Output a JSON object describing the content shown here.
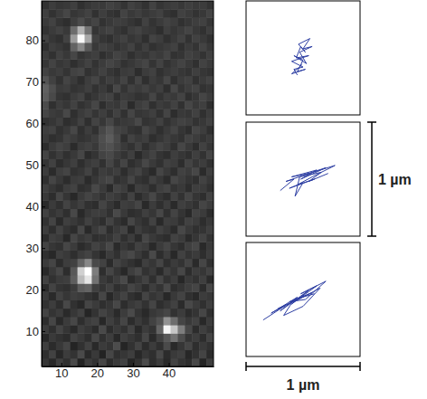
{
  "chart_data": [
    {
      "type": "heatmap",
      "xlim": [
        4.5,
        52.5
      ],
      "ylim": [
        1.5,
        89.5
      ],
      "xticks": [
        10,
        20,
        30,
        40
      ],
      "yticks": [
        10,
        20,
        30,
        40,
        50,
        60,
        70,
        80
      ],
      "cells": [
        [
          52,
          38,
          61,
          45,
          70,
          33,
          58,
          47,
          66,
          41,
          55,
          62,
          36,
          49,
          72,
          44,
          57,
          39,
          64,
          50,
          43,
          68,
          35,
          59
        ],
        [
          44,
          63,
          37,
          58,
          49,
          71,
          40,
          55,
          34,
          67,
          46,
          52,
          60,
          38,
          53,
          45,
          69,
          42,
          56,
          61,
          37,
          48,
          65,
          41
        ],
        [
          60,
          41,
          54,
          66,
          35,
          47,
          62,
          39,
          57,
          50,
          73,
          36,
          48,
          64,
          42,
          58,
          45,
          71,
          39,
          52,
          66,
          44,
          56,
          47
        ],
        [
          37,
          56,
          48,
          42,
          63,
          55,
          44,
          68,
          46,
          59,
          38,
          61,
          53,
          45,
          67,
          40,
          62,
          85,
          110,
          74,
          50,
          59,
          43,
          64
        ],
        [
          58,
          45,
          65,
          51,
          39,
          60,
          52,
          41,
          70,
          43,
          56,
          47,
          64,
          39,
          58,
          49,
          96,
          235,
          190,
          120,
          68,
          42,
          61,
          50
        ],
        [
          43,
          67,
          39,
          57,
          68,
          44,
          59,
          63,
          37,
          61,
          49,
          66,
          42,
          57,
          46,
          63,
          78,
          140,
          105,
          66,
          55,
          63,
          38,
          57
        ],
        [
          65,
          50,
          58,
          40,
          53,
          62,
          36,
          49,
          64,
          55,
          40,
          58,
          71,
          50,
          39,
          54,
          60,
          67,
          48,
          58,
          42,
          50,
          67,
          45
        ],
        [
          48,
          59,
          44,
          69,
          47,
          38,
          66,
          57,
          45,
          52,
          68,
          43,
          55,
          61,
          48,
          66,
          44,
          53,
          62,
          41,
          69,
          57,
          46,
          60
        ],
        [
          56,
          40,
          63,
          52,
          61,
          57,
          49,
          42,
          67,
          38,
          54,
          63,
          47,
          40,
          65,
          51,
          58,
          38,
          55,
          64,
          46,
          39,
          58,
          53
        ],
        [
          41,
          64,
          50,
          46,
          58,
          88,
          95,
          61,
          50,
          62,
          45,
          51,
          66,
          58,
          43,
          60,
          49,
          70,
          44,
          51,
          60,
          66,
          42,
          67
        ],
        [
          62,
          47,
          57,
          60,
          90,
          180,
          220,
          110,
          56,
          47,
          59,
          70,
          41,
          52,
          63,
          45,
          67,
          48,
          59,
          37,
          55,
          48,
          61,
          40
        ],
        [
          39,
          55,
          68,
          43,
          85,
          200,
          245,
          120,
          44,
          66,
          51,
          38,
          60,
          69,
          48,
          57,
          40,
          62,
          51,
          68,
          43,
          59,
          52,
          63
        ],
        [
          57,
          66,
          42,
          59,
          62,
          95,
          130,
          70,
          63,
          41,
          64,
          55,
          47,
          39,
          61,
          52,
          66,
          45,
          57,
          49,
          65,
          40,
          67,
          46
        ],
        [
          46,
          38,
          61,
          55,
          44,
          58,
          64,
          50,
          39,
          58,
          47,
          62,
          69,
          56,
          44,
          70,
          43,
          59,
          38,
          62,
          50,
          57,
          44,
          58
        ],
        [
          64,
          52,
          47,
          67,
          57,
          41,
          49,
          63,
          55,
          69,
          40,
          53,
          45,
          62,
          58,
          39,
          57,
          66,
          52,
          44,
          61,
          68,
          39,
          55
        ],
        [
          42,
          61,
          56,
          38,
          66,
          53,
          60,
          45,
          48,
          51,
          62,
          46,
          58,
          41,
          67,
          55,
          48,
          43,
          63,
          57,
          40,
          52,
          64,
          49
        ],
        [
          59,
          44,
          63,
          50,
          42,
          68,
          39,
          57,
          66,
          43,
          56,
          64,
          38,
          60,
          50,
          46,
          62,
          54,
          41,
          68,
          55,
          46,
          50,
          61
        ],
        [
          48,
          65,
          40,
          61,
          55,
          47,
          62,
          51,
          44,
          64,
          49,
          41,
          67,
          53,
          45,
          63,
          39,
          60,
          57,
          45,
          62,
          58,
          43,
          54
        ],
        [
          63,
          50,
          58,
          45,
          69,
          39,
          54,
          60,
          58,
          47,
          70,
          55,
          44,
          48,
          61,
          52,
          68,
          46,
          64,
          50,
          39,
          63,
          57,
          42
        ],
        [
          40,
          57,
          46,
          64,
          52,
          61,
          47,
          43,
          65,
          52,
          41,
          60,
          57,
          66,
          39,
          58,
          45,
          59,
          40,
          61,
          54,
          47,
          66,
          58
        ],
        [
          55,
          43,
          67,
          51,
          38,
          56,
          65,
          58,
          49,
          61,
          55,
          46,
          63,
          42,
          54,
          68,
          51,
          43,
          62,
          48,
          66,
          51,
          44,
          62
        ],
        [
          61,
          52,
          44,
          59,
          63,
          45,
          50,
          69,
          56,
          40,
          64,
          58,
          39,
          61,
          57,
          44,
          60,
          65,
          49,
          55,
          43,
          60,
          57,
          46
        ],
        [
          45,
          66,
          54,
          42,
          57,
          60,
          41,
          53,
          62,
          68,
          47,
          52,
          66,
          50,
          45,
          62,
          53,
          41,
          67,
          59,
          50,
          45,
          63,
          53
        ],
        [
          58,
          41,
          60,
          65,
          47,
          52,
          63,
          46,
          59,
          54,
          60,
          43,
          57,
          64,
          51,
          40,
          66,
          55,
          44,
          62,
          57,
          68,
          41,
          60
        ],
        [
          50,
          62,
          43,
          53,
          61,
          44,
          56,
          61,
          47,
          66,
          50,
          65,
          45,
          53,
          68,
          56,
          47,
          62,
          58,
          43,
          64,
          52,
          59,
          47
        ],
        [
          64,
          48,
          59,
          46,
          55,
          67,
          42,
          50,
          64,
          70,
          58,
          49,
          61,
          40,
          55,
          63,
          50,
          44,
          60,
          52,
          46,
          61,
          48,
          65
        ],
        [
          42,
          57,
          65,
          60,
          41,
          58,
          62,
          55,
          72,
          78,
          66,
          56,
          48,
          62,
          46,
          57,
          65,
          59,
          46,
          67,
          55,
          43,
          62,
          51
        ],
        [
          56,
          45,
          50,
          63,
          57,
          49,
          53,
          60,
          75,
          88,
          70,
          45,
          63,
          55,
          60,
          44,
          52,
          61,
          53,
          48,
          63,
          58,
          50,
          57
        ],
        [
          60,
          63,
          47,
          55,
          68,
          46,
          59,
          47,
          68,
          82,
          64,
          61,
          50,
          46,
          67,
          58,
          45,
          56,
          65,
          51,
          44,
          66,
          59,
          45
        ],
        [
          47,
          52,
          61,
          44,
          50,
          62,
          45,
          64,
          53,
          67,
          51,
          55,
          58,
          69,
          49,
          53,
          62,
          48,
          57,
          63,
          60,
          49,
          54,
          62
        ],
        [
          66,
          58,
          54,
          69,
          45,
          57,
          63,
          51,
          60,
          48,
          62,
          47,
          66,
          52,
          55,
          61,
          47,
          65,
          43,
          55,
          52,
          62,
          46,
          58
        ],
        [
          72,
          46,
          59,
          52,
          62,
          48,
          55,
          67,
          44,
          57,
          54,
          63,
          41,
          59,
          64,
          46,
          58,
          53,
          62,
          47,
          67,
          55,
          61,
          44
        ],
        [
          88,
          70,
          51,
          47,
          58,
          64,
          46,
          53,
          61,
          63,
          46,
          58,
          55,
          48,
          51,
          66,
          49,
          60,
          55,
          64,
          45,
          53,
          66,
          57
        ],
        [
          92,
          75,
          57,
          60,
          49,
          53,
          61,
          48,
          56,
          45,
          68,
          50,
          62,
          57,
          63,
          54,
          61,
          44,
          68,
          50,
          59,
          64,
          48,
          52
        ],
        [
          80,
          62,
          48,
          65,
          56,
          44,
          59,
          66,
          50,
          61,
          53,
          64,
          47,
          65,
          45,
          59,
          52,
          67,
          46,
          58,
          62,
          47,
          57,
          63
        ],
        [
          63,
          55,
          60,
          50,
          63,
          67,
          48,
          54,
          62,
          52,
          46,
          57,
          60,
          43,
          58,
          62,
          47,
          55,
          60,
          53,
          49,
          61,
          52,
          48
        ],
        [
          51,
          64,
          53,
          58,
          45,
          55,
          63,
          49,
          58,
          66,
          60,
          48,
          54,
          61,
          66,
          50,
          63,
          49,
          57,
          64,
          55,
          46,
          63,
          56
        ],
        [
          58,
          47,
          62,
          54,
          67,
          50,
          57,
          61,
          45,
          53,
          64,
          59,
          46,
          56,
          52,
          61,
          56,
          65,
          48,
          51,
          62,
          58,
          49,
          61
        ],
        [
          45,
          60,
          55,
          48,
          95,
          130,
          85,
          55,
          62,
          58,
          49,
          55,
          63,
          49,
          60,
          47,
          53,
          58,
          62,
          46,
          57,
          50,
          64,
          53
        ],
        [
          62,
          52,
          46,
          63,
          150,
          240,
          160,
          62,
          51,
          46,
          57,
          62,
          52,
          58,
          45,
          64,
          59,
          46,
          55,
          63,
          48,
          62,
          55,
          46
        ],
        [
          49,
          57,
          63,
          55,
          105,
          170,
          110,
          51,
          59,
          64,
          53,
          47,
          60,
          64,
          56,
          53,
          44,
          61,
          52,
          58,
          65,
          54,
          47,
          60
        ],
        [
          56,
          63,
          50,
          44,
          60,
          72,
          58,
          65,
          48,
          55,
          61,
          58,
          51,
          45,
          62,
          49,
          57,
          64,
          59,
          47,
          53,
          60,
          62,
          51
        ],
        [
          61,
          48,
          58,
          67,
          52,
          57,
          63,
          47,
          60,
          50,
          46,
          64,
          55,
          61,
          53,
          58,
          62,
          50,
          45,
          62,
          57,
          49,
          54,
          64
        ],
        [
          47,
          59,
          52,
          55,
          61,
          46,
          54,
          58,
          56,
          63,
          59,
          50,
          62,
          57,
          48,
          63,
          51,
          57,
          60,
          54,
          61,
          56,
          58,
          49
        ]
      ]
    },
    {
      "type": "line",
      "color": "#2e3fa3",
      "xlim": [
        0,
        1
      ],
      "ylim": [
        0,
        1
      ],
      "tick_labels": false,
      "x": [
        0.45,
        0.42,
        0.5,
        0.4,
        0.55,
        0.44,
        0.48,
        0.52,
        0.46,
        0.56,
        0.5,
        0.58,
        0.47,
        0.53,
        0.42,
        0.5,
        0.45,
        0.52,
        0.4,
        0.49
      ],
      "values": [
        0.35,
        0.4,
        0.42,
        0.47,
        0.52,
        0.5,
        0.6,
        0.55,
        0.62,
        0.67,
        0.58,
        0.6,
        0.55,
        0.45,
        0.52,
        0.48,
        0.38,
        0.4,
        0.36,
        0.44
      ]
    },
    {
      "type": "line",
      "color": "#2e3fa3",
      "xlim": [
        0,
        1
      ],
      "ylim": [
        0,
        1
      ],
      "tick_labels": false,
      "x": [
        0.3,
        0.42,
        0.35,
        0.55,
        0.4,
        0.62,
        0.48,
        0.7,
        0.52,
        0.78,
        0.58,
        0.45,
        0.6,
        0.38,
        0.5,
        0.43,
        0.47,
        0.66,
        0.55,
        0.72
      ],
      "values": [
        0.4,
        0.5,
        0.48,
        0.55,
        0.52,
        0.58,
        0.5,
        0.6,
        0.54,
        0.62,
        0.52,
        0.45,
        0.5,
        0.42,
        0.47,
        0.35,
        0.52,
        0.56,
        0.48,
        0.55
      ]
    },
    {
      "type": "line",
      "color": "#2e3fa3",
      "xlim": [
        0,
        1
      ],
      "ylim": [
        0,
        1
      ],
      "tick_labels": false,
      "x": [
        0.15,
        0.35,
        0.22,
        0.45,
        0.3,
        0.55,
        0.4,
        0.62,
        0.48,
        0.7,
        0.52,
        0.38,
        0.58,
        0.28,
        0.46,
        0.65,
        0.5,
        0.33,
        0.42,
        0.6
      ],
      "values": [
        0.32,
        0.45,
        0.38,
        0.52,
        0.4,
        0.58,
        0.46,
        0.62,
        0.55,
        0.66,
        0.5,
        0.48,
        0.56,
        0.42,
        0.5,
        0.6,
        0.44,
        0.36,
        0.5,
        0.55
      ]
    }
  ],
  "scale_bars": [
    {
      "label": "1 µm",
      "length": 1,
      "orientation": "vertical"
    },
    {
      "label": "1 µm",
      "length": 1,
      "orientation": "horizontal"
    }
  ]
}
